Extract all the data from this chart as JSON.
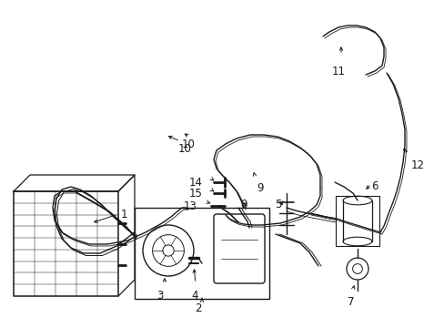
{
  "bg_color": "#ffffff",
  "line_color": "#1a1a1a",
  "label_fontsize": 8.5,
  "figsize": [
    4.89,
    3.6
  ],
  "dpi": 100
}
